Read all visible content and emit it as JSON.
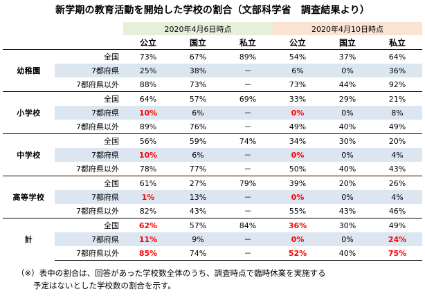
{
  "title": "新学期の教育活動を開始した学校の割合（文部科学省　調査結果より）",
  "dates": [
    "2020年4月6日時点",
    "2020年4月10日時点"
  ],
  "cols": [
    "公立",
    "国立",
    "私立",
    "公立",
    "国立",
    "私立"
  ],
  "groups": [
    {
      "level": "幼稚園",
      "rows": [
        {
          "region": "全国",
          "cells": [
            {
              "v": "73%",
              "red": false
            },
            {
              "v": "67%",
              "red": false
            },
            {
              "v": "89%",
              "red": false
            },
            {
              "v": "54%",
              "red": false
            },
            {
              "v": "37%",
              "red": false
            },
            {
              "v": "64%",
              "red": false
            }
          ]
        },
        {
          "region": "7都府県",
          "cells": [
            {
              "v": "25%",
              "red": false
            },
            {
              "v": "38%",
              "red": false
            },
            {
              "v": "－",
              "red": false
            },
            {
              "v": "6%",
              "red": false
            },
            {
              "v": "0%",
              "red": false
            },
            {
              "v": "36%",
              "red": false
            }
          ]
        },
        {
          "region": "7都府県以外",
          "cells": [
            {
              "v": "88%",
              "red": false
            },
            {
              "v": "73%",
              "red": false
            },
            {
              "v": "－",
              "red": false
            },
            {
              "v": "73%",
              "red": false
            },
            {
              "v": "44%",
              "red": false
            },
            {
              "v": "92%",
              "red": false
            }
          ]
        }
      ]
    },
    {
      "level": "小学校",
      "rows": [
        {
          "region": "全国",
          "cells": [
            {
              "v": "64%",
              "red": false
            },
            {
              "v": "57%",
              "red": false
            },
            {
              "v": "69%",
              "red": false
            },
            {
              "v": "33%",
              "red": false
            },
            {
              "v": "29%",
              "red": false
            },
            {
              "v": "21%",
              "red": false
            }
          ]
        },
        {
          "region": "7都府県",
          "cells": [
            {
              "v": "10%",
              "red": true
            },
            {
              "v": "6%",
              "red": false
            },
            {
              "v": "－",
              "red": false
            },
            {
              "v": "0%",
              "red": true
            },
            {
              "v": "0%",
              "red": false
            },
            {
              "v": "8%",
              "red": false
            }
          ]
        },
        {
          "region": "7都府県以外",
          "cells": [
            {
              "v": "89%",
              "red": false
            },
            {
              "v": "76%",
              "red": false
            },
            {
              "v": "－",
              "red": false
            },
            {
              "v": "49%",
              "red": false
            },
            {
              "v": "40%",
              "red": false
            },
            {
              "v": "49%",
              "red": false
            }
          ]
        }
      ]
    },
    {
      "level": "中学校",
      "rows": [
        {
          "region": "全国",
          "cells": [
            {
              "v": "56%",
              "red": false
            },
            {
              "v": "59%",
              "red": false
            },
            {
              "v": "74%",
              "red": false
            },
            {
              "v": "34%",
              "red": false
            },
            {
              "v": "30%",
              "red": false
            },
            {
              "v": "20%",
              "red": false
            }
          ]
        },
        {
          "region": "7都府県",
          "cells": [
            {
              "v": "10%",
              "red": true
            },
            {
              "v": "6%",
              "red": false
            },
            {
              "v": "－",
              "red": false
            },
            {
              "v": "0%",
              "red": true
            },
            {
              "v": "0%",
              "red": false
            },
            {
              "v": "4%",
              "red": false
            }
          ]
        },
        {
          "region": "7都府県以外",
          "cells": [
            {
              "v": "78%",
              "red": false
            },
            {
              "v": "77%",
              "red": false
            },
            {
              "v": "－",
              "red": false
            },
            {
              "v": "50%",
              "red": false
            },
            {
              "v": "40%",
              "red": false
            },
            {
              "v": "43%",
              "red": false
            }
          ]
        }
      ]
    },
    {
      "level": "高等学校",
      "rows": [
        {
          "region": "全国",
          "cells": [
            {
              "v": "61%",
              "red": false
            },
            {
              "v": "27%",
              "red": false
            },
            {
              "v": "79%",
              "red": false
            },
            {
              "v": "39%",
              "red": false
            },
            {
              "v": "20%",
              "red": false
            },
            {
              "v": "26%",
              "red": false
            }
          ]
        },
        {
          "region": "7都府県",
          "cells": [
            {
              "v": "1%",
              "red": true
            },
            {
              "v": "13%",
              "red": false
            },
            {
              "v": "－",
              "red": false
            },
            {
              "v": "0%",
              "red": true
            },
            {
              "v": "0%",
              "red": false
            },
            {
              "v": "4%",
              "red": false
            }
          ]
        },
        {
          "region": "7都府県以外",
          "cells": [
            {
              "v": "82%",
              "red": false
            },
            {
              "v": "43%",
              "red": false
            },
            {
              "v": "－",
              "red": false
            },
            {
              "v": "55%",
              "red": false
            },
            {
              "v": "43%",
              "red": false
            },
            {
              "v": "46%",
              "red": false
            }
          ]
        }
      ]
    },
    {
      "level": "計",
      "rows": [
        {
          "region": "全国",
          "cells": [
            {
              "v": "62%",
              "red": true
            },
            {
              "v": "57%",
              "red": false
            },
            {
              "v": "84%",
              "red": false
            },
            {
              "v": "36%",
              "red": true
            },
            {
              "v": "30%",
              "red": false
            },
            {
              "v": "49%",
              "red": false
            }
          ]
        },
        {
          "region": "7都府県",
          "cells": [
            {
              "v": "11%",
              "red": true
            },
            {
              "v": "9%",
              "red": false
            },
            {
              "v": "－",
              "red": false
            },
            {
              "v": "0%",
              "red": true
            },
            {
              "v": "0%",
              "red": false
            },
            {
              "v": "24%",
              "red": true
            }
          ]
        },
        {
          "region": "7都府県以外",
          "cells": [
            {
              "v": "85%",
              "red": true
            },
            {
              "v": "74%",
              "red": false
            },
            {
              "v": "－",
              "red": false
            },
            {
              "v": "52%",
              "red": true
            },
            {
              "v": "40%",
              "red": false
            },
            {
              "v": "75%",
              "red": true
            }
          ]
        }
      ]
    }
  ],
  "note": {
    "line1": "（※）表中の割合は、回答があった学校数全体のうち、調査時点で臨時休業を実施する",
    "line2": "予定はないとした学校数の割合を示す。"
  },
  "colors": {
    "date1_bg": "#e6efda",
    "date2_bg": "#fbe3d4",
    "shade_bg": "#dce6f1",
    "highlight": "#ff0000"
  }
}
